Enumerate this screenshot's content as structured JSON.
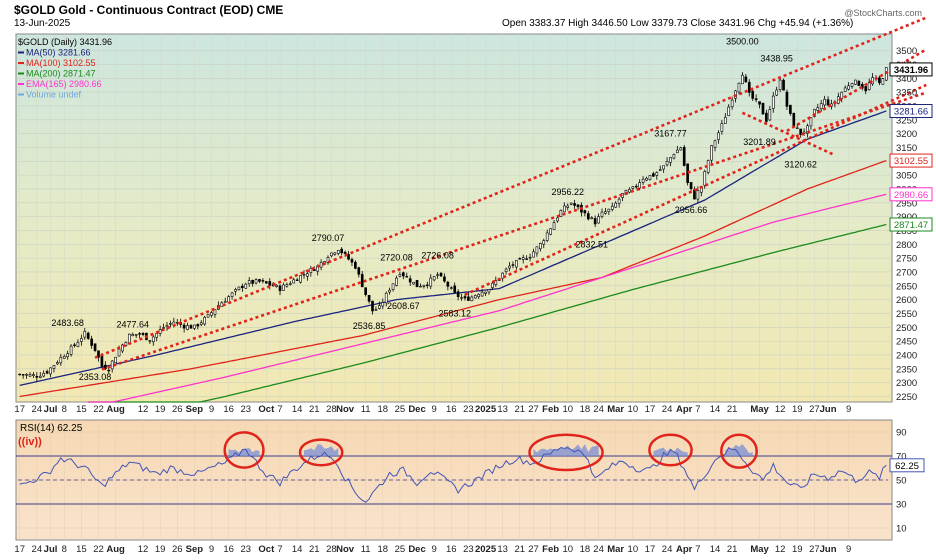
{
  "header": {
    "symbol_line": "$GOLD Gold - Continuous Contract (EOD) CME",
    "date": "13-Jun-2025",
    "ohlc": "Open 3383.37  High 3446.50  Low 3379.73  Close 3431.96  Chg +45.94 (+1.36%)",
    "watermark": "@StockCharts.com"
  },
  "legend": [
    {
      "label": "$GOLD (Daily) 3431.96",
      "color": "#000000"
    },
    {
      "label": "MA(50) 3281.66",
      "color": "#1a237e"
    },
    {
      "label": "MA(100) 3102.55",
      "color": "#e0241b"
    },
    {
      "label": "MA(200) 2871.47",
      "color": "#1b8a1b"
    },
    {
      "label": "EMA(165) 2980.66",
      "color": "#ff33cc"
    },
    {
      "label": "Volume undef",
      "color": "#6fa8dc"
    }
  ],
  "price_badges": [
    {
      "label": "3431.96",
      "value": 3431.96,
      "color": "#000000"
    },
    {
      "label": "3281.66",
      "value": 3281.66,
      "color": "#1a237e"
    },
    {
      "label": "3102.55",
      "value": 3102.55,
      "color": "#e0241b"
    },
    {
      "label": "2980.66",
      "value": 2980.66,
      "color": "#ff33cc"
    },
    {
      "label": "2871.47",
      "value": 2871.47,
      "color": "#1b8a1b"
    }
  ],
  "rsi_panel": {
    "label": "RSI(14) 62.25",
    "wave_label": "((iv))",
    "value_badge": "62.25",
    "ticks": [
      "90",
      "70",
      "50",
      "30",
      "10"
    ],
    "tick_values": [
      90,
      70,
      50,
      30,
      10
    ],
    "ylim": [
      0,
      100
    ]
  },
  "x_ticks": [
    {
      "label": "17",
      "i": 0
    },
    {
      "label": "24",
      "i": 5
    },
    {
      "label": "Jul",
      "i": 9
    },
    {
      "label": "8",
      "i": 13
    },
    {
      "label": "15",
      "i": 18
    },
    {
      "label": "22",
      "i": 23
    },
    {
      "label": "Aug",
      "i": 28
    },
    {
      "label": "12",
      "i": 36
    },
    {
      "label": "19",
      "i": 41
    },
    {
      "label": "26",
      "i": 46
    },
    {
      "label": "Sep",
      "i": 51
    },
    {
      "label": "9",
      "i": 56
    },
    {
      "label": "16",
      "i": 61
    },
    {
      "label": "23",
      "i": 66
    },
    {
      "label": "Oct",
      "i": 72
    },
    {
      "label": "7",
      "i": 76
    },
    {
      "label": "14",
      "i": 81
    },
    {
      "label": "21",
      "i": 86
    },
    {
      "label": "28",
      "i": 91
    },
    {
      "label": "Nov",
      "i": 95
    },
    {
      "label": "11",
      "i": 101
    },
    {
      "label": "18",
      "i": 106
    },
    {
      "label": "25",
      "i": 111
    },
    {
      "label": "Dec",
      "i": 116
    },
    {
      "label": "9",
      "i": 121
    },
    {
      "label": "16",
      "i": 126
    },
    {
      "label": "23",
      "i": 131
    },
    {
      "label": "2025",
      "i": 136
    },
    {
      "label": "13",
      "i": 141
    },
    {
      "label": "21",
      "i": 146
    },
    {
      "label": "27",
      "i": 150
    },
    {
      "label": "Feb",
      "i": 155
    },
    {
      "label": "10",
      "i": 160
    },
    {
      "label": "18",
      "i": 165
    },
    {
      "label": "24",
      "i": 169
    },
    {
      "label": "Mar",
      "i": 174
    },
    {
      "label": "10",
      "i": 179
    },
    {
      "label": "17",
      "i": 184
    },
    {
      "label": "24",
      "i": 189
    },
    {
      "label": "Apr",
      "i": 194
    },
    {
      "label": "7",
      "i": 198
    },
    {
      "label": "14",
      "i": 203
    },
    {
      "label": "21",
      "i": 208
    },
    {
      "label": "May",
      "i": 216
    },
    {
      "label": "12",
      "i": 222
    },
    {
      "label": "19",
      "i": 227
    },
    {
      "label": "27",
      "i": 232
    },
    {
      "label": "Jun",
      "i": 236
    },
    {
      "label": "9",
      "i": 242
    }
  ],
  "chart_data": {
    "type": "candlestick",
    "title": "$GOLD Gold - Continuous Contract (EOD) CME",
    "ylim": [
      2230,
      3560
    ],
    "y_ticks": [
      2250,
      2300,
      2350,
      2400,
      2450,
      2500,
      2550,
      2600,
      2650,
      2700,
      2750,
      2800,
      2850,
      2900,
      2950,
      3000,
      3050,
      3100,
      3150,
      3200,
      3250,
      3300,
      3350,
      3400,
      3450,
      3500
    ],
    "grid": true,
    "legend_position": "top-left",
    "close_anchors": [
      [
        0,
        2330
      ],
      [
        5,
        2325
      ],
      [
        8,
        2340
      ],
      [
        12,
        2390
      ],
      [
        16,
        2435
      ],
      [
        19,
        2478
      ],
      [
        22,
        2420
      ],
      [
        24,
        2360
      ],
      [
        26,
        2353
      ],
      [
        29,
        2420
      ],
      [
        32,
        2470
      ],
      [
        35,
        2477
      ],
      [
        38,
        2455
      ],
      [
        42,
        2500
      ],
      [
        45,
        2520
      ],
      [
        48,
        2505
      ],
      [
        51,
        2500
      ],
      [
        55,
        2540
      ],
      [
        58,
        2580
      ],
      [
        62,
        2620
      ],
      [
        66,
        2660
      ],
      [
        70,
        2665
      ],
      [
        74,
        2650
      ],
      [
        76,
        2640
      ],
      [
        80,
        2670
      ],
      [
        84,
        2700
      ],
      [
        87,
        2720
      ],
      [
        90,
        2760
      ],
      [
        93,
        2785
      ],
      [
        95,
        2760
      ],
      [
        98,
        2720
      ],
      [
        101,
        2620
      ],
      [
        103,
        2560
      ],
      [
        105,
        2570
      ],
      [
        108,
        2640
      ],
      [
        111,
        2700
      ],
      [
        113,
        2680
      ],
      [
        116,
        2650
      ],
      [
        119,
        2660
      ],
      [
        122,
        2690
      ],
      [
        125,
        2650
      ],
      [
        127,
        2620
      ],
      [
        130,
        2600
      ],
      [
        132,
        2610
      ],
      [
        134,
        2625
      ],
      [
        137,
        2640
      ],
      [
        140,
        2680
      ],
      [
        143,
        2720
      ],
      [
        146,
        2740
      ],
      [
        149,
        2760
      ],
      [
        152,
        2800
      ],
      [
        155,
        2860
      ],
      [
        158,
        2920
      ],
      [
        161,
        2950
      ],
      [
        164,
        2920
      ],
      [
        167,
        2890
      ],
      [
        168,
        2880
      ],
      [
        170,
        2910
      ],
      [
        173,
        2930
      ],
      [
        176,
        2980
      ],
      [
        179,
        3000
      ],
      [
        182,
        3040
      ],
      [
        185,
        3050
      ],
      [
        188,
        3080
      ],
      [
        191,
        3130
      ],
      [
        193,
        3150
      ],
      [
        195,
        3020
      ],
      [
        197,
        2970
      ],
      [
        199,
        3010
      ],
      [
        202,
        3150
      ],
      [
        205,
        3230
      ],
      [
        208,
        3330
      ],
      [
        211,
        3420
      ],
      [
        213,
        3340
      ],
      [
        216,
        3300
      ],
      [
        218,
        3250
      ],
      [
        220,
        3330
      ],
      [
        222,
        3400
      ],
      [
        224,
        3300
      ],
      [
        226,
        3230
      ],
      [
        228,
        3200
      ],
      [
        230,
        3220
      ],
      [
        232,
        3280
      ],
      [
        235,
        3320
      ],
      [
        237,
        3300
      ],
      [
        240,
        3350
      ],
      [
        243,
        3390
      ],
      [
        245,
        3380
      ],
      [
        247,
        3360
      ],
      [
        249,
        3400
      ],
      [
        251,
        3380
      ],
      [
        253,
        3431.96
      ]
    ],
    "series": [
      {
        "name": "MA(50)",
        "last": 3281.66,
        "anchors": [
          [
            0,
            2290
          ],
          [
            40,
            2400
          ],
          [
            80,
            2520
          ],
          [
            110,
            2600
          ],
          [
            140,
            2640
          ],
          [
            170,
            2800
          ],
          [
            200,
            2960
          ],
          [
            230,
            3180
          ],
          [
            253,
            3281.66
          ]
        ]
      },
      {
        "name": "MA(100)",
        "last": 3102.55,
        "anchors": [
          [
            0,
            2250
          ],
          [
            50,
            2350
          ],
          [
            100,
            2470
          ],
          [
            140,
            2600
          ],
          [
            170,
            2680
          ],
          [
            200,
            2830
          ],
          [
            230,
            3000
          ],
          [
            253,
            3102.55
          ]
        ]
      },
      {
        "name": "MA(200)",
        "last": 2871.47,
        "anchors": [
          [
            20,
            2140
          ],
          [
            60,
            2250
          ],
          [
            100,
            2370
          ],
          [
            140,
            2500
          ],
          [
            180,
            2640
          ],
          [
            220,
            2770
          ],
          [
            253,
            2871.47
          ]
        ]
      },
      {
        "name": "EMA(165)",
        "last": 2980.66,
        "anchors": [
          [
            20,
            2210
          ],
          [
            60,
            2320
          ],
          [
            100,
            2440
          ],
          [
            140,
            2560
          ],
          [
            180,
            2720
          ],
          [
            220,
            2880
          ],
          [
            253,
            2980.66
          ]
        ]
      }
    ],
    "annotations": [
      {
        "text": "2483.68",
        "i": 14,
        "v": 2483.68,
        "pos": "above"
      },
      {
        "text": "2353.08",
        "i": 22,
        "v": 2353.08,
        "pos": "below"
      },
      {
        "text": "2477.64",
        "i": 33,
        "v": 2477.64,
        "pos": "above"
      },
      {
        "text": "2790.07",
        "i": 90,
        "v": 2790.07,
        "pos": "above"
      },
      {
        "text": "2536.85",
        "i": 102,
        "v": 2536.85,
        "pos": "below"
      },
      {
        "text": "2720.08",
        "i": 110,
        "v": 2720.08,
        "pos": "above"
      },
      {
        "text": "2608.67",
        "i": 112,
        "v": 2608.67,
        "pos": "below"
      },
      {
        "text": "2726.08",
        "i": 122,
        "v": 2726.08,
        "pos": "above"
      },
      {
        "text": "2583.12",
        "i": 127,
        "v": 2583.12,
        "pos": "below"
      },
      {
        "text": "2956.22",
        "i": 160,
        "v": 2956.22,
        "pos": "above"
      },
      {
        "text": "2832.51",
        "i": 167,
        "v": 2832.51,
        "pos": "below"
      },
      {
        "text": "3167.77",
        "i": 190,
        "v": 3167.77,
        "pos": "above"
      },
      {
        "text": "2956.66",
        "i": 196,
        "v": 2956.66,
        "pos": "below"
      },
      {
        "text": "3500.00",
        "i": 211,
        "v": 3500,
        "pos": "above"
      },
      {
        "text": "3438.95",
        "i": 221,
        "v": 3438.95,
        "pos": "above"
      },
      {
        "text": "3201.89",
        "i": 216,
        "v": 3201.89,
        "pos": "below"
      },
      {
        "text": "3120.62",
        "i": 228,
        "v": 3120.62,
        "pos": "below"
      }
    ],
    "trendlines": [
      {
        "name": "upper-channel",
        "from": [
          22,
          2390
        ],
        "to": [
          253,
          3560
        ],
        "color": "#e0241b"
      },
      {
        "name": "lower-channel",
        "from": [
          24,
          2348
        ],
        "to": [
          253,
          3300
        ],
        "color": "#e0241b"
      },
      {
        "name": "mid-channel",
        "from": [
          130,
          2618
        ],
        "to": [
          253,
          3310
        ],
        "color": "#e0241b"
      },
      {
        "name": "apex-drop",
        "from": [
          211,
          3275
        ],
        "to": [
          226,
          3190
        ],
        "color": "#e0241b"
      },
      {
        "name": "apex-rise",
        "from": [
          224,
          3210
        ],
        "to": [
          253,
          3420
        ],
        "color": "#e0241b"
      }
    ],
    "rsi": {
      "name": "RSI(14)",
      "last": 62.25,
      "anchors": [
        [
          0,
          45
        ],
        [
          8,
          55
        ],
        [
          12,
          68
        ],
        [
          16,
          64
        ],
        [
          19,
          60
        ],
        [
          24,
          45
        ],
        [
          28,
          55
        ],
        [
          32,
          65
        ],
        [
          36,
          60
        ],
        [
          40,
          55
        ],
        [
          44,
          60
        ],
        [
          48,
          57
        ],
        [
          52,
          55
        ],
        [
          56,
          60
        ],
        [
          60,
          64
        ],
        [
          64,
          72
        ],
        [
          66,
          77
        ],
        [
          68,
          68
        ],
        [
          72,
          55
        ],
        [
          76,
          48
        ],
        [
          80,
          58
        ],
        [
          84,
          66
        ],
        [
          88,
          72
        ],
        [
          92,
          68
        ],
        [
          95,
          52
        ],
        [
          98,
          40
        ],
        [
          101,
          32
        ],
        [
          104,
          42
        ],
        [
          108,
          55
        ],
        [
          112,
          58
        ],
        [
          116,
          48
        ],
        [
          120,
          58
        ],
        [
          124,
          50
        ],
        [
          128,
          42
        ],
        [
          132,
          48
        ],
        [
          136,
          55
        ],
        [
          140,
          62
        ],
        [
          145,
          68
        ],
        [
          150,
          64
        ],
        [
          155,
          72
        ],
        [
          158,
          78
        ],
        [
          162,
          76
        ],
        [
          166,
          68
        ],
        [
          168,
          50
        ],
        [
          172,
          60
        ],
        [
          176,
          66
        ],
        [
          180,
          60
        ],
        [
          184,
          58
        ],
        [
          188,
          70
        ],
        [
          191,
          74
        ],
        [
          194,
          60
        ],
        [
          197,
          42
        ],
        [
          200,
          55
        ],
        [
          204,
          70
        ],
        [
          208,
          76
        ],
        [
          210,
          72
        ],
        [
          214,
          58
        ],
        [
          217,
          50
        ],
        [
          220,
          62
        ],
        [
          224,
          48
        ],
        [
          228,
          42
        ],
        [
          232,
          55
        ],
        [
          236,
          52
        ],
        [
          240,
          58
        ],
        [
          244,
          50
        ],
        [
          248,
          56
        ],
        [
          251,
          52
        ],
        [
          253,
          62.25
        ]
      ]
    },
    "rsi_highlights": [
      {
        "from": 61,
        "to": 70,
        "lo": 62,
        "hi": 88
      },
      {
        "from": 83,
        "to": 93,
        "lo": 64,
        "hi": 82
      },
      {
        "from": 150,
        "to": 169,
        "lo": 60,
        "hi": 86
      },
      {
        "from": 185,
        "to": 195,
        "lo": 64,
        "hi": 86
      },
      {
        "from": 206,
        "to": 214,
        "lo": 62,
        "hi": 86
      }
    ]
  }
}
